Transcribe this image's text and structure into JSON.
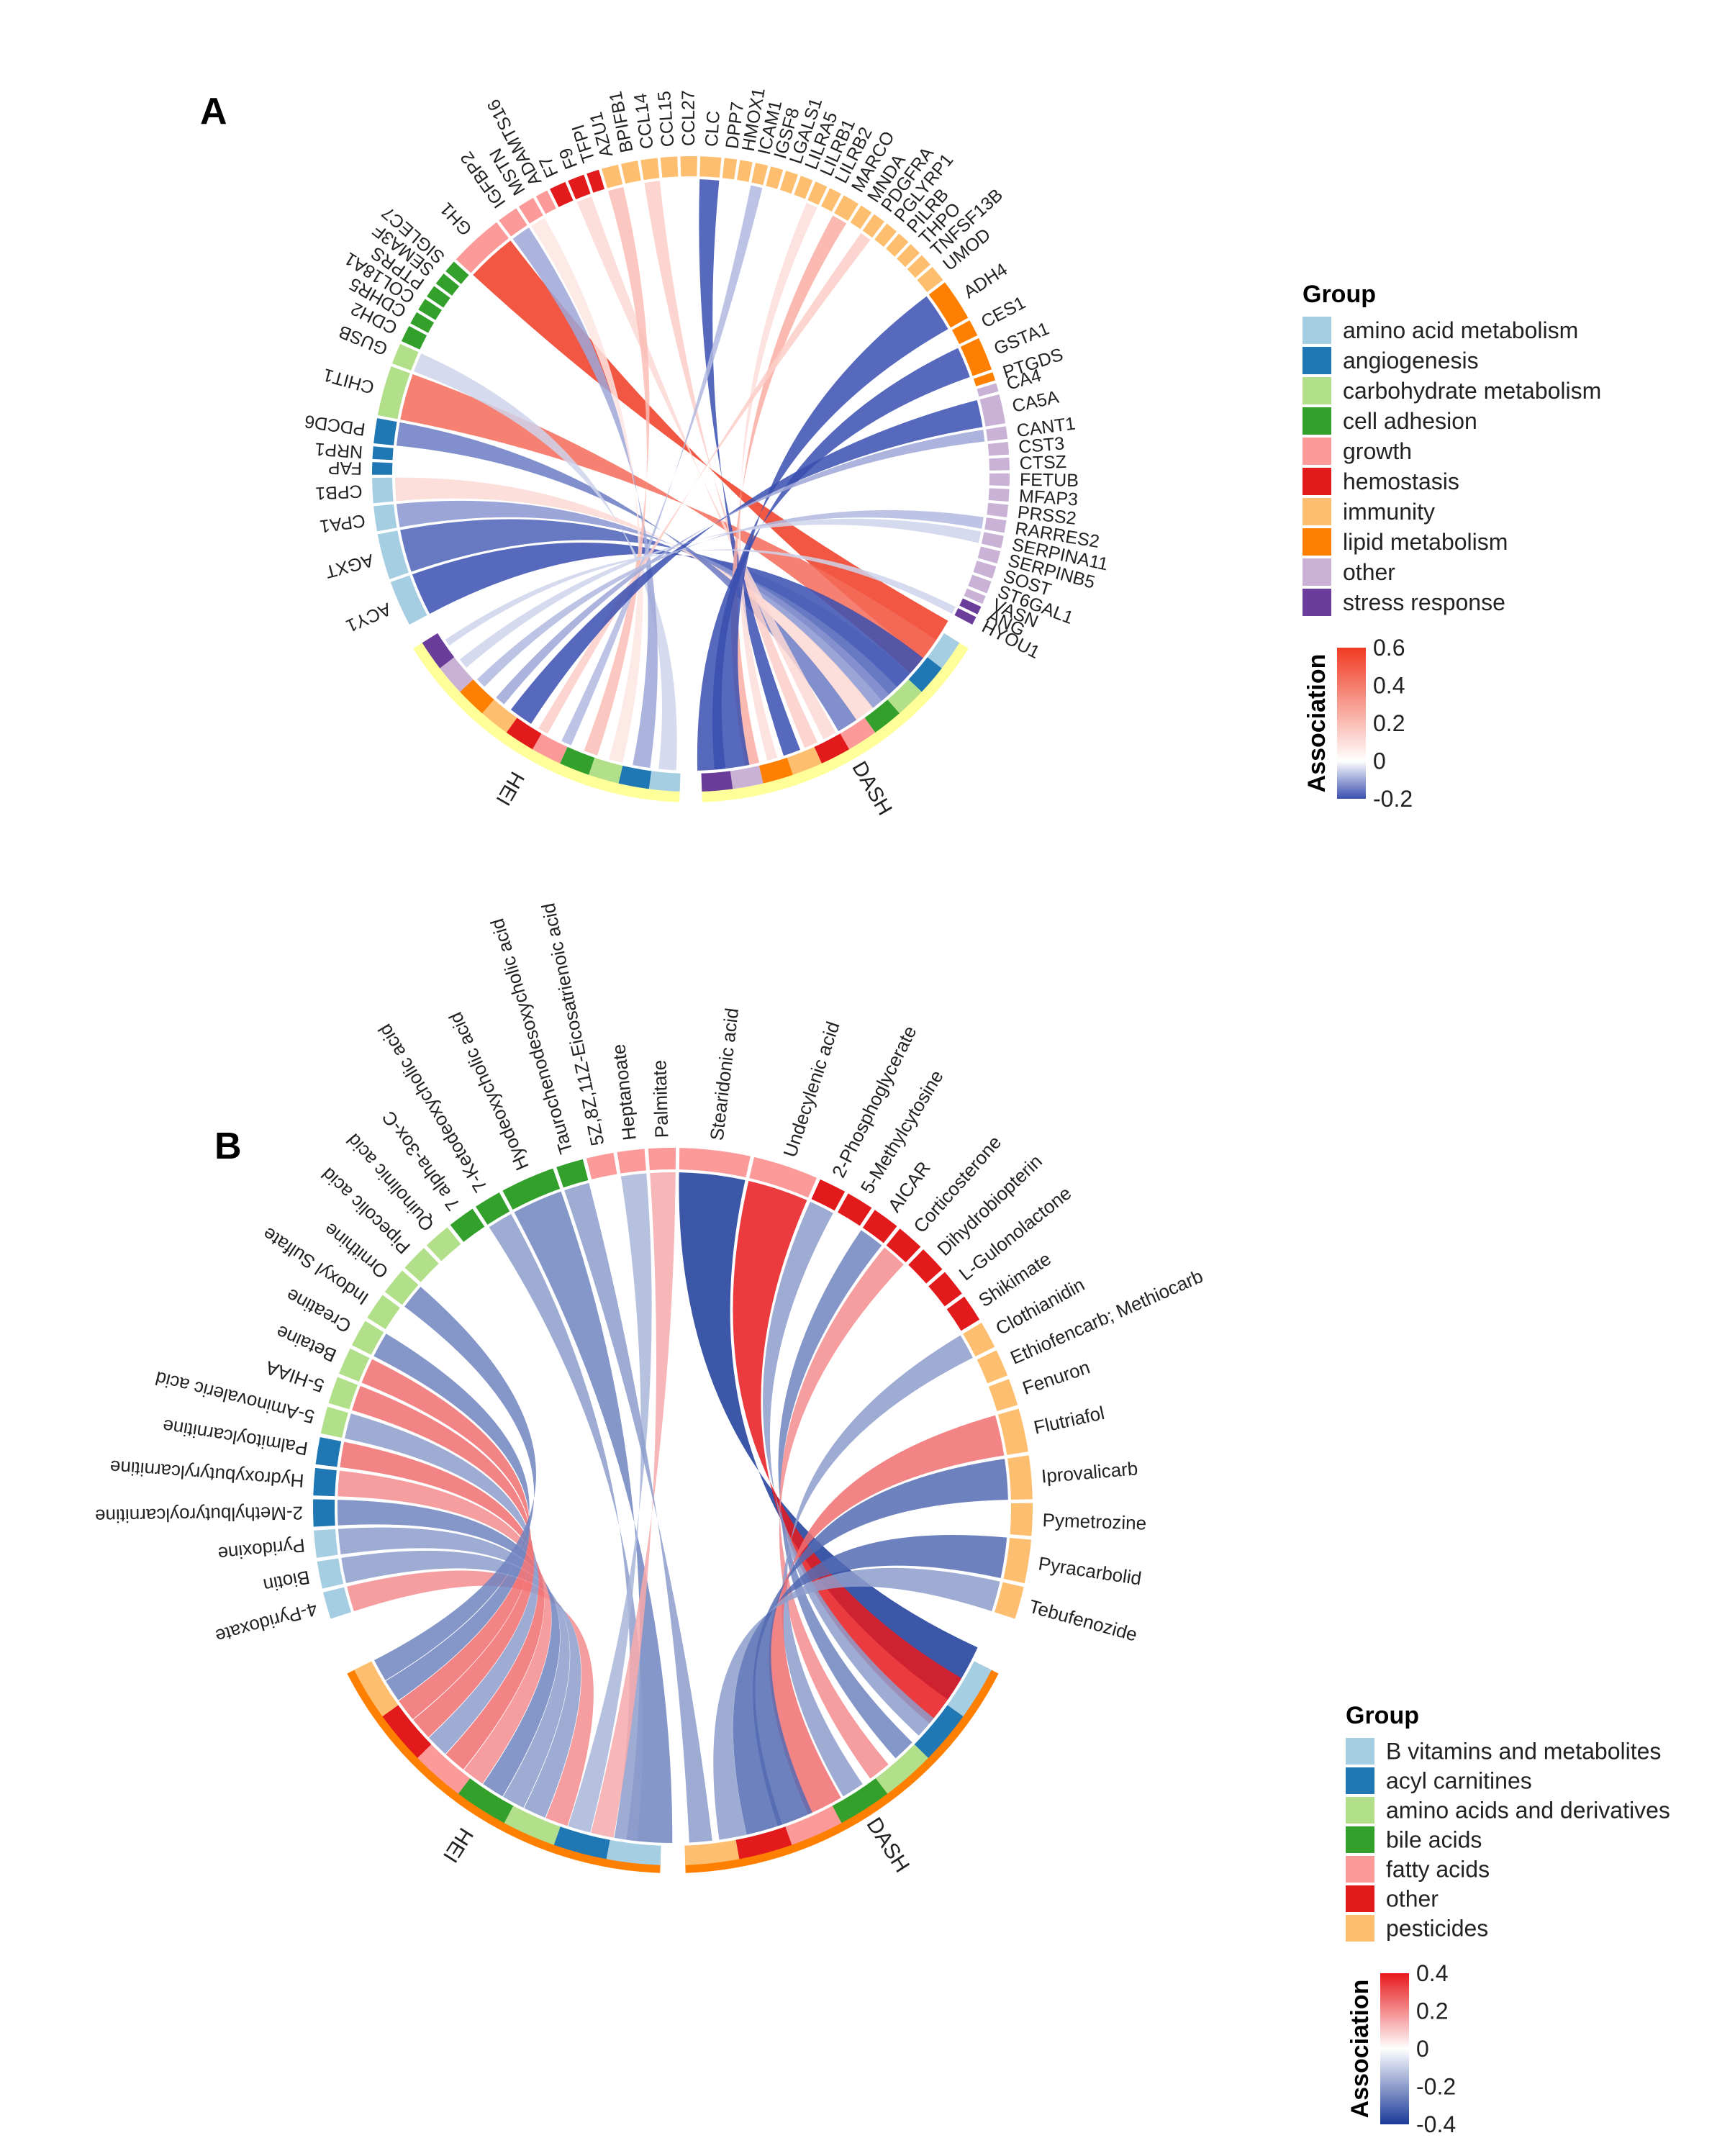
{
  "chart_data": [
    {
      "panel": "A",
      "type": "chord",
      "title": "",
      "group_legend_title": "Group",
      "scale_legend_title": "Association",
      "scale_ticks": [
        "0.6",
        "0.4",
        "0.2",
        "0",
        "-0.2"
      ],
      "scale_range": [
        -0.2,
        0.6
      ],
      "scale_colors": [
        "#3a4fb0",
        "#ffffff",
        "#f03a22"
      ],
      "groups": [
        {
          "name": "amino acid metabolism",
          "color": "#a6cee3"
        },
        {
          "name": "angiogenesis",
          "color": "#1f78b4"
        },
        {
          "name": "carbohydrate metabolism",
          "color": "#b2df8a"
        },
        {
          "name": "cell adhesion",
          "color": "#33a02c"
        },
        {
          "name": "growth",
          "color": "#fb9a99"
        },
        {
          "name": "hemostasis",
          "color": "#e31a1c"
        },
        {
          "name": "immunity",
          "color": "#fdbf6f"
        },
        {
          "name": "lipid metabolism",
          "color": "#ff7f00"
        },
        {
          "name": "other",
          "color": "#cab2d6"
        },
        {
          "name": "stress response",
          "color": "#6a3d9a"
        }
      ],
      "diet_sectors": [
        {
          "name": "DASH",
          "color": "#ffff99"
        },
        {
          "name": "HEI",
          "color": "#ffff99"
        }
      ],
      "nodes": [
        {
          "name": "ACY1",
          "group": "amino acid metabolism",
          "size": 2.2
        },
        {
          "name": "AGXT",
          "group": "amino acid metabolism",
          "size": 2.2
        },
        {
          "name": "CPA1",
          "group": "amino acid metabolism",
          "size": 1.2
        },
        {
          "name": "CPB1",
          "group": "amino acid metabolism",
          "size": 1.2
        },
        {
          "name": "FAP",
          "group": "angiogenesis",
          "size": 0.6
        },
        {
          "name": "NRP1",
          "group": "angiogenesis",
          "size": 0.6
        },
        {
          "name": "PDCD6",
          "group": "angiogenesis",
          "size": 1.2
        },
        {
          "name": "CHIT1",
          "group": "carbohydrate metabolism",
          "size": 2.4
        },
        {
          "name": "GUSB",
          "group": "carbohydrate metabolism",
          "size": 1.0
        },
        {
          "name": "CDH2",
          "group": "cell adhesion",
          "size": 0.8
        },
        {
          "name": "CDHR5",
          "group": "cell adhesion",
          "size": 0.6
        },
        {
          "name": "COL18A1",
          "group": "cell adhesion",
          "size": 0.6
        },
        {
          "name": "PTPRS",
          "group": "cell adhesion",
          "size": 0.6
        },
        {
          "name": "SEMA3F",
          "group": "cell adhesion",
          "size": 0.6
        },
        {
          "name": "SIGLEC7",
          "group": "cell adhesion",
          "size": 0.6
        },
        {
          "name": "GH1",
          "group": "growth",
          "size": 2.6
        },
        {
          "name": "IGFBP2",
          "group": "growth",
          "size": 1.0
        },
        {
          "name": "MSTN",
          "group": "growth",
          "size": 0.8
        },
        {
          "name": "ADAMTS16",
          "group": "growth",
          "size": 0.6
        },
        {
          "name": "F7",
          "group": "hemostasis",
          "size": 0.8
        },
        {
          "name": "F9",
          "group": "hemostasis",
          "size": 0.8
        },
        {
          "name": "TFPI",
          "group": "hemostasis",
          "size": 0.6
        },
        {
          "name": "AZU1",
          "group": "immunity",
          "size": 0.8
        },
        {
          "name": "BPIFB1",
          "group": "immunity",
          "size": 0.8
        },
        {
          "name": "CCL14",
          "group": "immunity",
          "size": 0.8
        },
        {
          "name": "CCL15",
          "group": "immunity",
          "size": 0.8
        },
        {
          "name": "CCL27",
          "group": "immunity",
          "size": 0.8
        },
        {
          "name": "CLC",
          "group": "immunity",
          "size": 1.0
        },
        {
          "name": "DPP7",
          "group": "immunity",
          "size": 0.6
        },
        {
          "name": "HMOX1",
          "group": "immunity",
          "size": 0.6
        },
        {
          "name": "ICAM1",
          "group": "immunity",
          "size": 0.6
        },
        {
          "name": "IGSF8",
          "group": "immunity",
          "size": 0.6
        },
        {
          "name": "LGALS1",
          "group": "immunity",
          "size": 0.6
        },
        {
          "name": "LILRA5",
          "group": "immunity",
          "size": 0.6
        },
        {
          "name": "LILRB1",
          "group": "immunity",
          "size": 0.6
        },
        {
          "name": "LILRB2",
          "group": "immunity",
          "size": 0.6
        },
        {
          "name": "MARCO",
          "group": "immunity",
          "size": 0.8
        },
        {
          "name": "MNDA",
          "group": "immunity",
          "size": 0.6
        },
        {
          "name": "PDGFRA",
          "group": "immunity",
          "size": 0.6
        },
        {
          "name": "PGLYRP1",
          "group": "immunity",
          "size": 0.6
        },
        {
          "name": "PILRB",
          "group": "immunity",
          "size": 0.6
        },
        {
          "name": "THPO",
          "group": "immunity",
          "size": 0.6
        },
        {
          "name": "TNFSF13B",
          "group": "immunity",
          "size": 0.6
        },
        {
          "name": "UMOD",
          "group": "immunity",
          "size": 0.8
        },
        {
          "name": "ADH4",
          "group": "lipid metabolism",
          "size": 2.0
        },
        {
          "name": "CES1",
          "group": "lipid metabolism",
          "size": 0.8
        },
        {
          "name": "GSTA1",
          "group": "lipid metabolism",
          "size": 1.6
        },
        {
          "name": "PTGDS",
          "group": "lipid metabolism",
          "size": 0.4
        },
        {
          "name": "CA4",
          "group": "other",
          "size": 0.4
        },
        {
          "name": "CA5A",
          "group": "other",
          "size": 1.4
        },
        {
          "name": "CANT1",
          "group": "other",
          "size": 0.6
        },
        {
          "name": "CST3",
          "group": "other",
          "size": 0.6
        },
        {
          "name": "CTSZ",
          "group": "other",
          "size": 0.6
        },
        {
          "name": "FETUB",
          "group": "other",
          "size": 0.6
        },
        {
          "name": "MFAP3",
          "group": "other",
          "size": 0.6
        },
        {
          "name": "PRSS2",
          "group": "other",
          "size": 0.6
        },
        {
          "name": "RARRES2",
          "group": "other",
          "size": 0.6
        },
        {
          "name": "SERPINA11",
          "group": "other",
          "size": 0.6
        },
        {
          "name": "SERPINB5",
          "group": "other",
          "size": 0.6
        },
        {
          "name": "SOST",
          "group": "other",
          "size": 0.6
        },
        {
          "name": "ST6GAL1",
          "group": "other",
          "size": 0.6
        },
        {
          "name": "VASN",
          "group": "other",
          "size": 0.4
        },
        {
          "name": "ANG",
          "group": "stress response",
          "size": 0.4
        },
        {
          "name": "HYOU1",
          "group": "stress response",
          "size": 0.4
        }
      ],
      "links": [
        {
          "source": "GH1",
          "target": "DASH",
          "value": 0.6
        },
        {
          "source": "CHIT1",
          "target": "DASH",
          "value": 0.45
        },
        {
          "source": "ACY1",
          "target": "DASH",
          "value": -0.2
        },
        {
          "source": "AGXT",
          "target": "DASH",
          "value": -0.18
        },
        {
          "source": "CPA1",
          "target": "DASH",
          "value": -0.12
        },
        {
          "source": "CPB1",
          "target": "DASH",
          "value": 0.12
        },
        {
          "source": "PDCD6",
          "target": "DASH",
          "value": -0.15
        },
        {
          "source": "GUSB",
          "target": "HEI",
          "value": -0.05
        },
        {
          "source": "IGFBP2",
          "target": "HEI",
          "value": -0.1
        },
        {
          "source": "MSTN",
          "target": "HEI",
          "value": 0.08
        },
        {
          "source": "F9",
          "target": "DASH",
          "value": 0.12
        },
        {
          "source": "AZU1",
          "target": "HEI",
          "value": 0.2
        },
        {
          "source": "CCL14",
          "target": "DASH",
          "value": 0.15
        },
        {
          "source": "CLC",
          "target": "DASH",
          "value": -0.22
        },
        {
          "source": "ICAM1",
          "target": "HEI",
          "value": -0.08
        },
        {
          "source": "LILRB1",
          "target": "DASH",
          "value": 0.1
        },
        {
          "source": "MARCO",
          "target": "DASH",
          "value": 0.25
        },
        {
          "source": "PDGFRA",
          "target": "HEI",
          "value": 0.15
        },
        {
          "source": "ADH4",
          "target": "DASH",
          "value": -0.22
        },
        {
          "source": "GSTA1",
          "target": "DASH",
          "value": -0.2
        },
        {
          "source": "CA5A",
          "target": "HEI",
          "value": -0.2
        },
        {
          "source": "CANT1",
          "target": "HEI",
          "value": -0.1
        },
        {
          "source": "RARRES2",
          "target": "HEI",
          "value": -0.08
        },
        {
          "source": "SERPINA11",
          "target": "HEI",
          "value": -0.05
        },
        {
          "source": "HYOU1",
          "target": "HEI",
          "value": -0.05
        }
      ]
    },
    {
      "panel": "B",
      "type": "chord",
      "title": "",
      "group_legend_title": "Group",
      "scale_legend_title": "Association",
      "scale_ticks": [
        "0.4",
        "0.2",
        "0",
        "-0.2",
        "-0.4"
      ],
      "scale_range": [
        -0.4,
        0.4
      ],
      "scale_colors": [
        "#1a3a99",
        "#ffffff",
        "#e8191c"
      ],
      "groups": [
        {
          "name": "B vitamins and metabolites",
          "color": "#a6cee3"
        },
        {
          "name": "acyl carnitines",
          "color": "#1f78b4"
        },
        {
          "name": "amino acids and derivatives",
          "color": "#b2df8a"
        },
        {
          "name": "bile acids",
          "color": "#33a02c"
        },
        {
          "name": "fatty acids",
          "color": "#fb9a99"
        },
        {
          "name": "other",
          "color": "#e31a1c"
        },
        {
          "name": "pesticides",
          "color": "#fdbf6f"
        }
      ],
      "diet_sectors": [
        {
          "name": "DASH",
          "color": "#ff7f00"
        },
        {
          "name": "HEI",
          "color": "#ff7f00"
        }
      ],
      "nodes": [
        {
          "name": "4-Pyridoxate",
          "group": "B vitamins and metabolites",
          "size": 1
        },
        {
          "name": "Biotin",
          "group": "B vitamins and metabolites",
          "size": 1
        },
        {
          "name": "Pyridoxine",
          "group": "B vitamins and metabolites",
          "size": 1
        },
        {
          "name": "2-Methylbutyroylcarnitine",
          "group": "acyl carnitines",
          "size": 1
        },
        {
          "name": "Hydroxybutyrylcarnitine",
          "group": "acyl carnitines",
          "size": 1
        },
        {
          "name": "Palmitoylcarnitine",
          "group": "acyl carnitines",
          "size": 1
        },
        {
          "name": "5-Aminovaleric acid",
          "group": "amino acids and derivatives",
          "size": 1
        },
        {
          "name": "5-HIAA",
          "group": "amino acids and derivatives",
          "size": 1
        },
        {
          "name": "Betaine",
          "group": "amino acids and derivatives",
          "size": 1
        },
        {
          "name": "Creatine",
          "group": "amino acids and derivatives",
          "size": 1
        },
        {
          "name": "Indoxyl Sulfate",
          "group": "amino acids and derivatives",
          "size": 1
        },
        {
          "name": "Ornithine",
          "group": "amino acids and derivatives",
          "size": 1
        },
        {
          "name": "Pipecolic acid",
          "group": "amino acids and derivatives",
          "size": 1
        },
        {
          "name": "Quinolinic acid",
          "group": "amino acids and derivatives",
          "size": 1
        },
        {
          "name": "7 alpha-3ox-C",
          "group": "bile acids",
          "size": 1
        },
        {
          "name": "7-Ketodeoxycholic acid",
          "group": "bile acids",
          "size": 1
        },
        {
          "name": "Hyodeoxycholic acid",
          "group": "bile acids",
          "size": 2
        },
        {
          "name": "Taurochenodesoxycholic acid",
          "group": "bile acids",
          "size": 1
        },
        {
          "name": "5Z,8Z,11Z-Eicosatrienoic acid",
          "group": "fatty acids",
          "size": 1
        },
        {
          "name": "Heptanoate",
          "group": "fatty acids",
          "size": 1
        },
        {
          "name": "Palmitate",
          "group": "fatty acids",
          "size": 1
        },
        {
          "name": "Stearidonic acid",
          "group": "fatty acids",
          "size": 2.6
        },
        {
          "name": "Undecylenic acid",
          "group": "fatty acids",
          "size": 2.4
        },
        {
          "name": "2-Phosphoglycerate",
          "group": "other",
          "size": 1
        },
        {
          "name": "5-Methylcytosine",
          "group": "other",
          "size": 1
        },
        {
          "name": "AICAR",
          "group": "other",
          "size": 1
        },
        {
          "name": "Corticosterone",
          "group": "other",
          "size": 1
        },
        {
          "name": "Dihydrobiopterin",
          "group": "other",
          "size": 1
        },
        {
          "name": "L-Gulonolactone",
          "group": "other",
          "size": 1
        },
        {
          "name": "Shikimate",
          "group": "other",
          "size": 1
        },
        {
          "name": "Clothianidin",
          "group": "pesticides",
          "size": 1
        },
        {
          "name": "Ethiofencarb; Methiocarb",
          "group": "pesticides",
          "size": 1
        },
        {
          "name": "Fenuron",
          "group": "pesticides",
          "size": 1
        },
        {
          "name": "Flutriafol",
          "group": "pesticides",
          "size": 1.6
        },
        {
          "name": "Iprovalicarb",
          "group": "pesticides",
          "size": 1.6
        },
        {
          "name": "Pymetrozine",
          "group": "pesticides",
          "size": 1.2
        },
        {
          "name": "Pyracarbolid",
          "group": "pesticides",
          "size": 1.6
        },
        {
          "name": "Tebufenozide",
          "group": "pesticides",
          "size": 1.2
        }
      ],
      "links": [
        {
          "source": "Stearidonic acid",
          "target": "DASH",
          "value": -0.4
        },
        {
          "source": "Undecylenic acid",
          "target": "DASH",
          "value": 0.4
        },
        {
          "source": "Hyodeoxycholic acid",
          "target": "HEI",
          "value": -0.25
        },
        {
          "source": "7-Ketodeoxycholic acid",
          "target": "HEI",
          "value": -0.2
        },
        {
          "source": "Palmitate",
          "target": "HEI",
          "value": 0.15
        },
        {
          "source": "Heptanoate",
          "target": "HEI",
          "value": -0.15
        },
        {
          "source": "2-Phosphoglycerate",
          "target": "DASH",
          "value": -0.2
        },
        {
          "source": "AICAR",
          "target": "DASH",
          "value": -0.25
        },
        {
          "source": "Corticosterone",
          "target": "DASH",
          "value": 0.2
        },
        {
          "source": "Clothianidin",
          "target": "DASH",
          "value": -0.2
        },
        {
          "source": "Flutriafol",
          "target": "DASH",
          "value": 0.25
        },
        {
          "source": "Iprovalicarb",
          "target": "DASH",
          "value": -0.3
        },
        {
          "source": "Pyracarbolid",
          "target": "DASH",
          "value": -0.3
        },
        {
          "source": "Tebufenozide",
          "target": "DASH",
          "value": -0.2
        },
        {
          "source": "4-Pyridoxate",
          "target": "HEI",
          "value": 0.2
        },
        {
          "source": "Biotin",
          "target": "HEI",
          "value": -0.2
        },
        {
          "source": "Pyridoxine",
          "target": "HEI",
          "value": -0.2
        },
        {
          "source": "2-Methylbutyroylcarnitine",
          "target": "HEI",
          "value": -0.25
        },
        {
          "source": "Hydroxybutyrylcarnitine",
          "target": "HEI",
          "value": 0.2
        },
        {
          "source": "Palmitoylcarnitine",
          "target": "HEI",
          "value": 0.25
        },
        {
          "source": "5-Aminovaleric acid",
          "target": "HEI",
          "value": -0.2
        },
        {
          "source": "5-HIAA",
          "target": "HEI",
          "value": 0.25
        },
        {
          "source": "Betaine",
          "target": "HEI",
          "value": 0.25
        },
        {
          "source": "Creatine",
          "target": "HEI",
          "value": -0.25
        },
        {
          "source": "Ornithine",
          "target": "HEI",
          "value": -0.25
        },
        {
          "source": "Taurochenodesoxycholic acid",
          "target": "DASH",
          "value": -0.2
        }
      ]
    }
  ]
}
